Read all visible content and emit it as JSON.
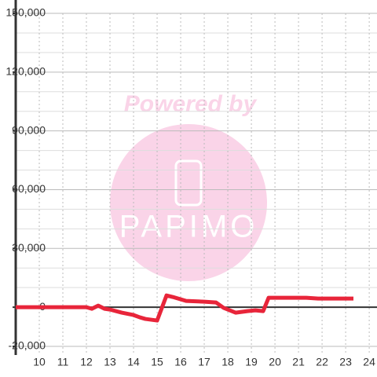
{
  "chart_data": {
    "type": "line",
    "watermark": {
      "top": "Powered by",
      "logo": "PAPIMO"
    },
    "x": [
      9.0,
      12.0,
      12.23,
      12.5,
      12.77,
      13.0,
      13.5,
      14.0,
      14.27,
      14.5,
      15.0,
      15.4,
      15.67,
      16.23,
      17.0,
      17.5,
      17.83,
      18.33,
      18.83,
      19.17,
      19.5,
      19.73,
      21.33,
      21.83,
      22.33,
      23.33
    ],
    "series": [
      {
        "color": "#e8253a",
        "values": [
          0,
          0,
          -800,
          800,
          -800,
          -1200,
          -2800,
          -4000,
          -5200,
          -6000,
          -6800,
          6000,
          5200,
          3200,
          2800,
          2400,
          -400,
          -2800,
          -2000,
          -1600,
          -2000,
          4800,
          4800,
          4400,
          4400,
          4400
        ]
      }
    ],
    "xlim": [
      9,
      24.33
    ],
    "ylim": [
      -20000,
      150000
    ],
    "xticks": [
      10,
      11,
      12,
      13,
      14,
      15,
      16,
      17,
      18,
      19,
      20,
      21,
      22,
      23,
      24
    ],
    "yticks": [
      {
        "value": -20000,
        "label": "-20,000"
      },
      0,
      {
        "value": 30000,
        "label": "30,000"
      },
      {
        "value": 60000,
        "label": "60,000"
      },
      {
        "value": 90000,
        "label": "90,000"
      },
      {
        "value": 120000,
        "label": "120,000"
      },
      {
        "value": 150000,
        "label": "150,000"
      }
    ],
    "y_minor_ticks": [
      10000,
      20000,
      40000,
      50000,
      70000,
      80000,
      100000,
      110000,
      130000,
      140000
    ],
    "grid": true
  }
}
